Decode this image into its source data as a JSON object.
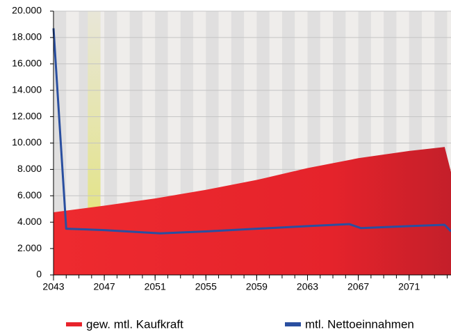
{
  "chart_data": {
    "type": "area-line",
    "xlim": [
      2043,
      2074.3
    ],
    "ylim": [
      0,
      20000
    ],
    "yticks": [
      0,
      {
        "value": 2000,
        "label": "2.000"
      },
      {
        "value": 4000,
        "label": "4.000"
      },
      {
        "value": 6000,
        "label": "6.000"
      },
      {
        "value": 8000,
        "label": "8.000"
      },
      {
        "value": 10000,
        "label": "10.000"
      },
      {
        "value": 12000,
        "label": "12.000"
      },
      {
        "value": 14000,
        "label": "14.000"
      },
      {
        "value": 16000,
        "label": "16.000"
      },
      {
        "value": 18000,
        "label": "18.000"
      },
      {
        "value": 20000,
        "label": "20.000"
      }
    ],
    "xticks": [
      2043,
      2047,
      2051,
      2055,
      2059,
      2063,
      2067,
      2071
    ],
    "xminorticks": [
      2043,
      2044,
      2045,
      2046,
      2047,
      2048,
      2049,
      2050,
      2051,
      2052,
      2053,
      2054,
      2055,
      2056,
      2057,
      2058,
      2059,
      2060,
      2061,
      2062,
      2063,
      2064,
      2065,
      2066,
      2067,
      2068,
      2069,
      2070,
      2071,
      2072,
      2073,
      2074
    ],
    "highlight_x": [
      2045.7,
      2046.7
    ],
    "grid": true,
    "series": [
      {
        "name": "gew. mtl. Kaufkraft",
        "color": "#e8232b",
        "kind": "area",
        "x": [
          2043,
          2047,
          2051,
          2055,
          2059,
          2063,
          2067,
          2071,
          2073.8,
          2074.3
        ],
        "values": [
          4750,
          5250,
          5800,
          6450,
          7200,
          8100,
          8850,
          9400,
          9700,
          7800
        ]
      },
      {
        "name": "mtl. Nettoeinnahmen",
        "color": "#2a4fa0",
        "kind": "line",
        "x": [
          2043,
          2044,
          2047,
          2051.4,
          2055,
          2059,
          2063,
          2066.3,
          2067.2,
          2071,
          2073.8,
          2074.3
        ],
        "values": [
          18700,
          3500,
          3400,
          3150,
          3300,
          3500,
          3700,
          3850,
          3550,
          3700,
          3800,
          3300
        ]
      }
    ]
  }
}
